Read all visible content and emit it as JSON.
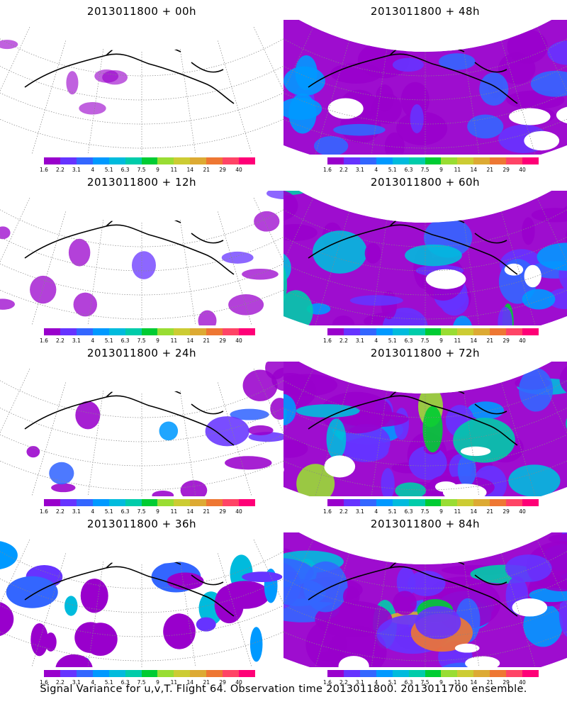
{
  "panels": [
    {
      "title": "2013011800 + 00h",
      "lead": 0
    },
    {
      "title": "2013011800 + 48h",
      "lead": 48
    },
    {
      "title": "2013011800 + 12h",
      "lead": 12
    },
    {
      "title": "2013011800 + 60h",
      "lead": 60
    },
    {
      "title": "2013011800 + 24h",
      "lead": 24
    },
    {
      "title": "2013011800 + 72h",
      "lead": 72
    },
    {
      "title": "2013011800 + 36h",
      "lead": 36
    },
    {
      "title": "2013011800 + 84h",
      "lead": 84
    }
  ],
  "colorbar": {
    "labels": [
      "1.6",
      "2.2",
      "3.1",
      "4",
      "5.1",
      "6.3",
      "7.5",
      "9",
      "11",
      "14",
      "21",
      "29",
      "40"
    ],
    "colors": [
      "#9900cc",
      "#6633ff",
      "#3366ff",
      "#0099ff",
      "#00bbdd",
      "#00ccaa",
      "#00cc33",
      "#99dd33",
      "#cccc33",
      "#ddaa33",
      "#ee7733",
      "#ff4466",
      "#ff0077"
    ]
  },
  "caption": "Signal Variance for u,v,T. Flight 64. Observation time 2013011800. 2013011700 ensemble."
}
